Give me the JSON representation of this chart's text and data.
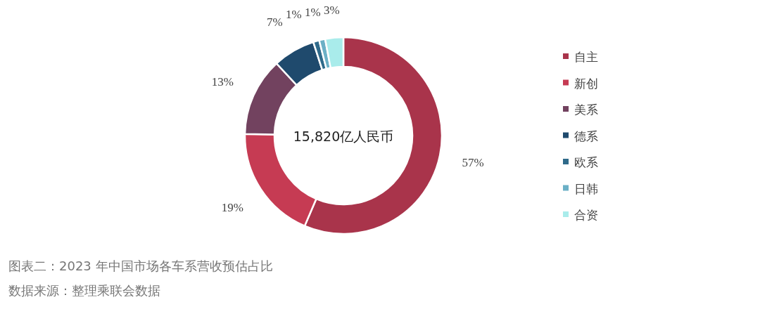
{
  "chart_data": {
    "type": "donut",
    "categories": [
      "自主",
      "新创",
      "美系",
      "德系",
      "欧系",
      "日韩",
      "合资"
    ],
    "values": [
      57,
      19,
      13,
      7,
      1,
      1,
      3
    ],
    "colors": [
      "#a9344b",
      "#c63b53",
      "#72425f",
      "#1f4a6d",
      "#2f6a8a",
      "#6bb0c6",
      "#a9eceb"
    ],
    "value_labels": [
      "57%",
      "19%",
      "13%",
      "7%",
      "1%",
      "1%",
      "3%"
    ],
    "legend": "right",
    "annotations": [
      "15,820亿人民币",
      "图表二：2023 年中国市场各车系营收预估占比",
      "数据来源：整理乘联会数据"
    ]
  }
}
